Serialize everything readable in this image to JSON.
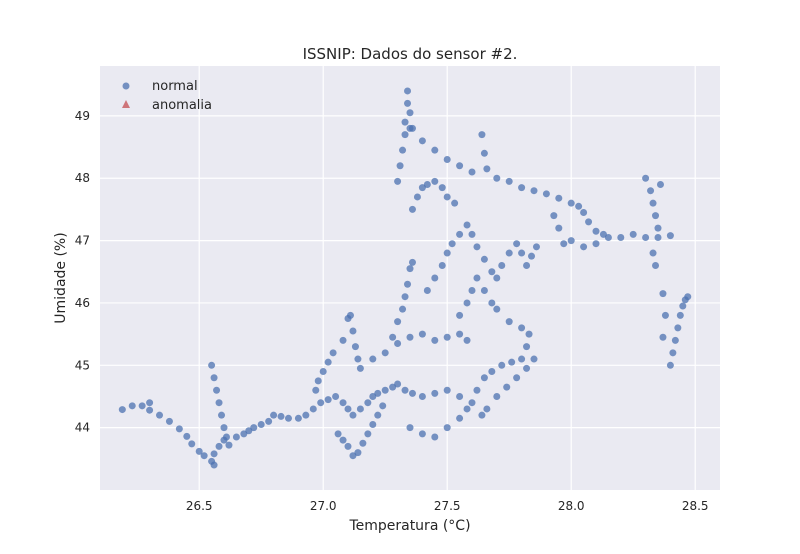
{
  "chart_data": {
    "type": "scatter",
    "title": "ISSNIP: Dados do sensor #2.",
    "xlabel": "Temperatura (°C)",
    "ylabel": "Umidade (%)",
    "xlim": [
      26.1,
      28.6
    ],
    "ylim": [
      43.0,
      49.8
    ],
    "xticks": [
      26.5,
      27.0,
      27.5,
      28.0,
      28.5
    ],
    "xtick_labels": [
      "26.5",
      "27.0",
      "27.5",
      "28.0",
      "28.5"
    ],
    "yticks": [
      44,
      45,
      46,
      47,
      48,
      49
    ],
    "ytick_labels": [
      "44",
      "45",
      "46",
      "47",
      "48",
      "49"
    ],
    "grid": true,
    "background": "#eaeaf2",
    "legend_position": "top-left",
    "series": [
      {
        "name": "normal",
        "marker": "circle",
        "color": "#4c72b0",
        "values": [
          [
            26.19,
            44.29
          ],
          [
            26.23,
            44.35
          ],
          [
            26.27,
            44.35
          ],
          [
            26.3,
            44.4
          ],
          [
            26.3,
            44.28
          ],
          [
            26.34,
            44.2
          ],
          [
            26.38,
            44.1
          ],
          [
            26.42,
            43.98
          ],
          [
            26.45,
            43.86
          ],
          [
            26.47,
            43.74
          ],
          [
            26.5,
            43.62
          ],
          [
            26.52,
            43.55
          ],
          [
            26.55,
            43.46
          ],
          [
            26.56,
            43.4
          ],
          [
            26.56,
            43.58
          ],
          [
            26.58,
            43.7
          ],
          [
            26.6,
            43.8
          ],
          [
            26.62,
            43.72
          ],
          [
            26.65,
            43.85
          ],
          [
            26.68,
            43.9
          ],
          [
            26.7,
            43.95
          ],
          [
            26.72,
            44.0
          ],
          [
            26.75,
            44.05
          ],
          [
            26.78,
            44.1
          ],
          [
            26.8,
            44.2
          ],
          [
            26.83,
            44.18
          ],
          [
            26.86,
            44.15
          ],
          [
            26.9,
            44.15
          ],
          [
            26.93,
            44.2
          ],
          [
            26.96,
            44.3
          ],
          [
            26.99,
            44.4
          ],
          [
            27.02,
            44.45
          ],
          [
            27.05,
            44.5
          ],
          [
            27.08,
            44.4
          ],
          [
            27.1,
            44.3
          ],
          [
            27.12,
            44.2
          ],
          [
            27.15,
            44.3
          ],
          [
            27.18,
            44.4
          ],
          [
            27.2,
            44.5
          ],
          [
            27.22,
            44.55
          ],
          [
            27.25,
            44.6
          ],
          [
            27.28,
            44.65
          ],
          [
            27.3,
            44.7
          ],
          [
            27.33,
            44.6
          ],
          [
            27.36,
            44.55
          ],
          [
            27.4,
            44.5
          ],
          [
            27.45,
            44.55
          ],
          [
            27.5,
            44.6
          ],
          [
            27.55,
            44.5
          ],
          [
            27.6,
            44.4
          ],
          [
            27.62,
            44.6
          ],
          [
            27.65,
            44.8
          ],
          [
            27.68,
            44.9
          ],
          [
            27.72,
            45.0
          ],
          [
            27.76,
            45.05
          ],
          [
            27.8,
            45.1
          ],
          [
            27.82,
            45.3
          ],
          [
            27.06,
            43.9
          ],
          [
            27.08,
            43.8
          ],
          [
            27.1,
            43.7
          ],
          [
            27.12,
            43.55
          ],
          [
            27.14,
            43.6
          ],
          [
            27.16,
            43.75
          ],
          [
            27.18,
            43.9
          ],
          [
            27.2,
            44.05
          ],
          [
            27.22,
            44.2
          ],
          [
            27.24,
            44.35
          ],
          [
            26.55,
            45.0
          ],
          [
            26.56,
            44.8
          ],
          [
            26.57,
            44.6
          ],
          [
            26.58,
            44.4
          ],
          [
            26.59,
            44.2
          ],
          [
            26.6,
            44.0
          ],
          [
            26.61,
            43.85
          ],
          [
            26.97,
            44.6
          ],
          [
            26.98,
            44.75
          ],
          [
            27.0,
            44.9
          ],
          [
            27.02,
            45.05
          ],
          [
            27.04,
            45.2
          ],
          [
            27.08,
            45.4
          ],
          [
            27.1,
            45.75
          ],
          [
            27.11,
            45.8
          ],
          [
            27.12,
            45.55
          ],
          [
            27.13,
            45.3
          ],
          [
            27.14,
            45.1
          ],
          [
            27.15,
            44.95
          ],
          [
            27.2,
            45.1
          ],
          [
            27.25,
            45.2
          ],
          [
            27.3,
            45.35
          ],
          [
            27.35,
            45.45
          ],
          [
            27.4,
            45.5
          ],
          [
            27.45,
            45.4
          ],
          [
            27.5,
            45.45
          ],
          [
            27.55,
            45.5
          ],
          [
            27.58,
            45.4
          ],
          [
            27.28,
            45.45
          ],
          [
            27.3,
            45.7
          ],
          [
            27.32,
            45.9
          ],
          [
            27.33,
            46.1
          ],
          [
            27.34,
            46.3
          ],
          [
            27.35,
            46.55
          ],
          [
            27.36,
            46.65
          ],
          [
            27.42,
            46.2
          ],
          [
            27.45,
            46.4
          ],
          [
            27.48,
            46.6
          ],
          [
            27.5,
            46.8
          ],
          [
            27.52,
            46.95
          ],
          [
            27.55,
            47.1
          ],
          [
            27.58,
            47.25
          ],
          [
            27.6,
            47.1
          ],
          [
            27.62,
            46.9
          ],
          [
            27.65,
            46.7
          ],
          [
            27.68,
            46.5
          ],
          [
            27.7,
            46.4
          ],
          [
            27.72,
            46.6
          ],
          [
            27.75,
            46.8
          ],
          [
            27.78,
            46.95
          ],
          [
            27.8,
            46.8
          ],
          [
            27.82,
            46.6
          ],
          [
            27.84,
            46.75
          ],
          [
            27.86,
            46.9
          ],
          [
            27.55,
            45.8
          ],
          [
            27.58,
            46.0
          ],
          [
            27.6,
            46.2
          ],
          [
            27.62,
            46.4
          ],
          [
            27.65,
            46.2
          ],
          [
            27.68,
            46.0
          ],
          [
            27.7,
            45.9
          ],
          [
            27.75,
            45.7
          ],
          [
            27.8,
            45.6
          ],
          [
            27.83,
            45.5
          ],
          [
            27.64,
            44.2
          ],
          [
            27.66,
            44.3
          ],
          [
            27.7,
            44.5
          ],
          [
            27.74,
            44.65
          ],
          [
            27.78,
            44.8
          ],
          [
            27.82,
            44.95
          ],
          [
            27.85,
            45.1
          ],
          [
            27.35,
            44.0
          ],
          [
            27.4,
            43.9
          ],
          [
            27.45,
            43.85
          ],
          [
            27.5,
            44.0
          ],
          [
            27.55,
            44.15
          ],
          [
            27.58,
            44.3
          ],
          [
            27.3,
            47.95
          ],
          [
            27.31,
            48.2
          ],
          [
            27.32,
            48.45
          ],
          [
            27.33,
            48.7
          ],
          [
            27.33,
            48.9
          ],
          [
            27.34,
            49.2
          ],
          [
            27.34,
            49.4
          ],
          [
            27.35,
            49.05
          ],
          [
            27.35,
            48.8
          ],
          [
            27.36,
            47.5
          ],
          [
            27.38,
            47.7
          ],
          [
            27.4,
            47.85
          ],
          [
            27.42,
            47.9
          ],
          [
            27.45,
            47.95
          ],
          [
            27.48,
            47.85
          ],
          [
            27.5,
            47.7
          ],
          [
            27.53,
            47.6
          ],
          [
            27.36,
            48.8
          ],
          [
            27.4,
            48.6
          ],
          [
            27.45,
            48.45
          ],
          [
            27.5,
            48.3
          ],
          [
            27.55,
            48.2
          ],
          [
            27.6,
            48.1
          ],
          [
            27.64,
            48.7
          ],
          [
            27.65,
            48.4
          ],
          [
            27.66,
            48.15
          ],
          [
            27.7,
            48.0
          ],
          [
            27.75,
            47.95
          ],
          [
            27.8,
            47.85
          ],
          [
            27.85,
            47.8
          ],
          [
            27.9,
            47.75
          ],
          [
            27.95,
            47.68
          ],
          [
            28.0,
            47.6
          ],
          [
            28.03,
            47.55
          ],
          [
            28.05,
            47.45
          ],
          [
            28.07,
            47.3
          ],
          [
            28.1,
            47.15
          ],
          [
            28.13,
            47.1
          ],
          [
            28.15,
            47.05
          ],
          [
            28.2,
            47.05
          ],
          [
            28.25,
            47.1
          ],
          [
            28.3,
            47.05
          ],
          [
            28.35,
            47.05
          ],
          [
            28.4,
            47.08
          ],
          [
            28.0,
            47.0
          ],
          [
            27.97,
            46.95
          ],
          [
            27.95,
            47.2
          ],
          [
            27.93,
            47.4
          ],
          [
            28.05,
            46.9
          ],
          [
            28.1,
            46.95
          ],
          [
            28.3,
            48.0
          ],
          [
            28.32,
            47.8
          ],
          [
            28.33,
            47.6
          ],
          [
            28.34,
            47.4
          ],
          [
            28.35,
            47.2
          ],
          [
            28.33,
            46.8
          ],
          [
            28.34,
            46.6
          ],
          [
            28.36,
            47.9
          ],
          [
            28.37,
            46.15
          ],
          [
            28.38,
            45.8
          ],
          [
            28.37,
            45.45
          ],
          [
            28.4,
            45.0
          ],
          [
            28.41,
            45.2
          ],
          [
            28.42,
            45.4
          ],
          [
            28.43,
            45.6
          ],
          [
            28.44,
            45.8
          ],
          [
            28.45,
            45.95
          ],
          [
            28.46,
            46.05
          ],
          [
            28.47,
            46.1
          ]
        ]
      },
      {
        "name": "anomalia",
        "marker": "triangle",
        "color": "#c44e52",
        "values": []
      }
    ]
  }
}
